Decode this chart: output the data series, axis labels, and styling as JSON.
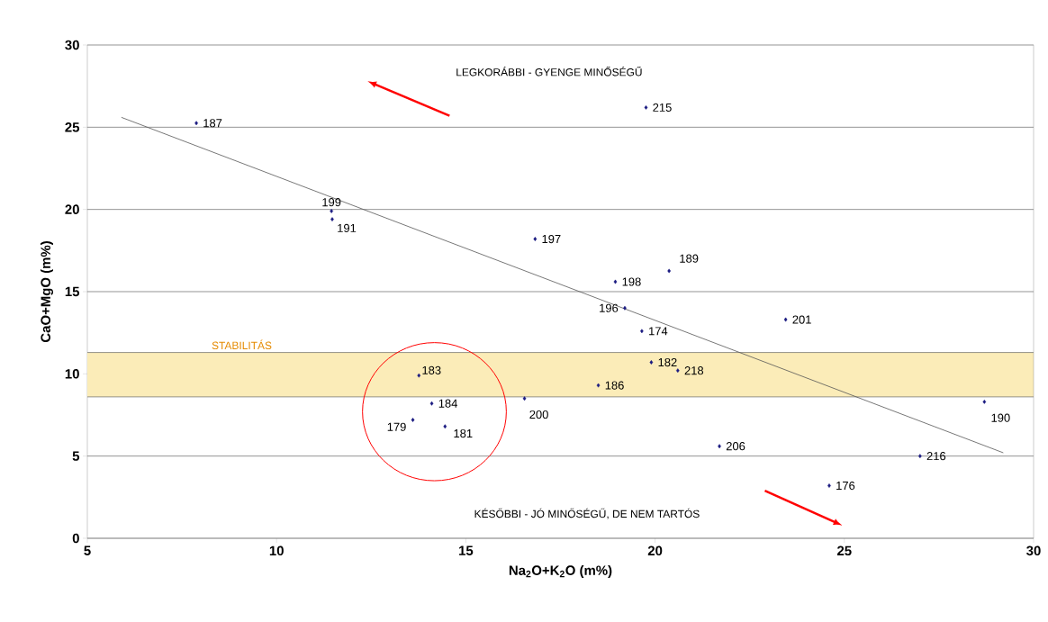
{
  "chart_data": {
    "type": "scatter",
    "xlabel": "Na$_{2}$O+K$_{2}$O (m%)",
    "ylabel": "CaO+MgO (m%)",
    "xlim": [
      5,
      30
    ],
    "ylim": [
      0,
      30
    ],
    "xticks": [
      5,
      10,
      15,
      20,
      25,
      30
    ],
    "yticks": [
      0,
      5,
      10,
      15,
      20,
      25,
      30
    ],
    "grid": "y",
    "series": [
      {
        "marker": "diamond",
        "color": "#1a1a80",
        "x": [
          7.88,
          11.45,
          11.47,
          16.83,
          19.76,
          20.37,
          18.95,
          19.2,
          19.65,
          23.45,
          19.9,
          20.6,
          18.5,
          16.55,
          28.7,
          21.7,
          27.0,
          24.6,
          13.76,
          14.1,
          13.6,
          14.45
        ],
        "values": [
          25.25,
          19.9,
          19.4,
          18.2,
          26.2,
          16.26,
          15.6,
          14.0,
          12.6,
          13.3,
          10.7,
          10.2,
          9.3,
          8.5,
          8.3,
          5.6,
          5.0,
          3.2,
          9.9,
          8.2,
          7.2,
          6.8
        ]
      },
      {
        "type": "line",
        "marker": "none",
        "color": "#555555",
        "x": [
          5.9,
          29.2
        ],
        "values": [
          25.6,
          5.2
        ]
      }
    ],
    "bands": [
      {
        "axis": "y",
        "from": 8.6,
        "to": 11.3,
        "label": "STABILITÁS",
        "color": "#fbecb8"
      }
    ],
    "annotations": [
      {
        "text": "187",
        "x": 7.88,
        "y": 25.25
      },
      {
        "text": "199",
        "x": 11.45,
        "y": 19.9
      },
      {
        "text": "191",
        "x": 11.47,
        "y": 19.4
      },
      {
        "text": "197",
        "x": 16.83,
        "y": 18.2
      },
      {
        "text": "215",
        "x": 19.76,
        "y": 26.2
      },
      {
        "text": "189",
        "x": 20.37,
        "y": 16.26
      },
      {
        "text": "198",
        "x": 18.95,
        "y": 15.6
      },
      {
        "text": "196",
        "x": 19.2,
        "y": 14.0
      },
      {
        "text": "174",
        "x": 19.65,
        "y": 12.6
      },
      {
        "text": "201",
        "x": 23.45,
        "y": 13.3
      },
      {
        "text": "182",
        "x": 19.9,
        "y": 10.7
      },
      {
        "text": "218",
        "x": 20.6,
        "y": 10.2
      },
      {
        "text": "186",
        "x": 18.5,
        "y": 9.3
      },
      {
        "text": "200",
        "x": 16.55,
        "y": 8.5
      },
      {
        "text": "190",
        "x": 28.7,
        "y": 8.3
      },
      {
        "text": "206",
        "x": 21.7,
        "y": 5.6
      },
      {
        "text": "216",
        "x": 27.0,
        "y": 5.0
      },
      {
        "text": "176",
        "x": 24.6,
        "y": 3.2
      },
      {
        "text": "183",
        "x": 13.76,
        "y": 9.9
      },
      {
        "text": "184",
        "x": 14.1,
        "y": 8.2
      },
      {
        "text": "179",
        "x": 13.6,
        "y": 7.2
      },
      {
        "text": "181",
        "x": 14.45,
        "y": 6.8
      },
      "LEGKORÁBBI - GYENGE MINŐSÉGŰ",
      "KÉSŐBBI - JÓ MINŐSÉGŰ, DE NEM TARTÓS"
    ]
  }
}
